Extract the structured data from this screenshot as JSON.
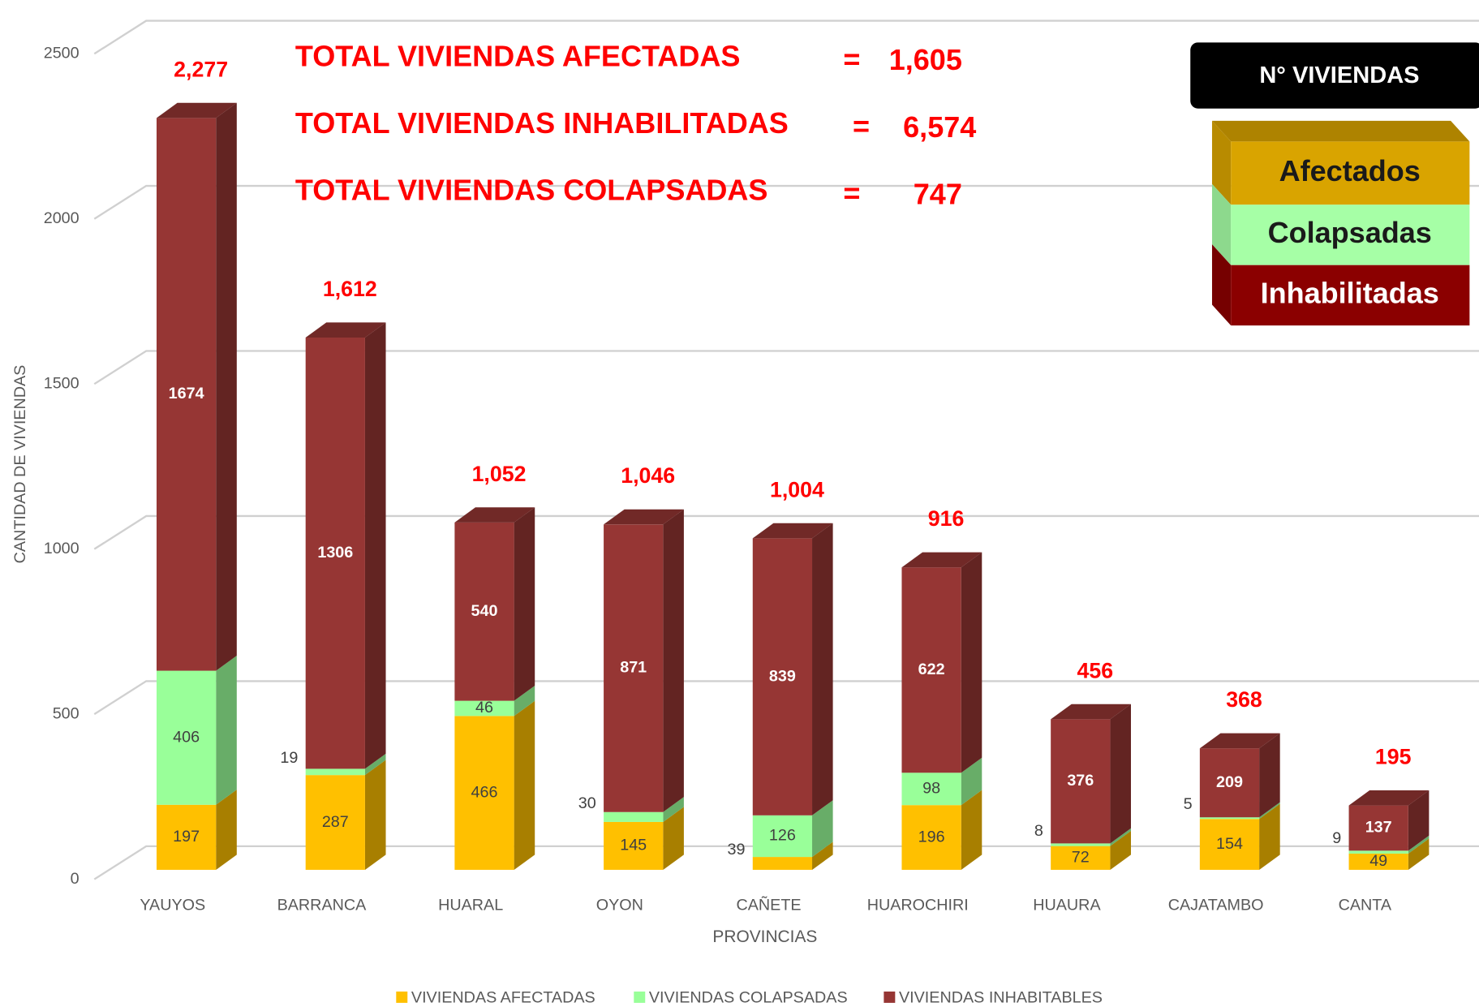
{
  "chart_data": {
    "type": "bar3d_stacked",
    "x_label": "PROVINCIAS",
    "y_label": "CANTIDAD DE VIVIENDAS",
    "categories": [
      "YAUYOS",
      "BARRANCA",
      "HUARAL",
      "OYON",
      "CAÑETE",
      "HUAROCHIRI",
      "HUAURA",
      "CAJATAMBO",
      "CANTA"
    ],
    "series": [
      {
        "name": "VIVIENDAS AFECTADAS",
        "color": "#FFC000",
        "values": [
          197,
          287,
          466,
          145,
          39,
          196,
          72,
          154,
          49
        ]
      },
      {
        "name": "VIVIENDAS COLAPSADAS",
        "color": "#99FF99",
        "values": [
          406,
          19,
          46,
          30,
          126,
          98,
          8,
          5,
          9
        ]
      },
      {
        "name": "VIVIENDAS INHABITABLES",
        "color": "#963634",
        "values": [
          1674,
          1306,
          540,
          871,
          839,
          622,
          376,
          209,
          137
        ]
      }
    ],
    "totals": {
      "values": [
        2277,
        1612,
        1052,
        1046,
        1004,
        916,
        456,
        368,
        195
      ],
      "value_labels": [
        "2,277",
        "1,612",
        "1,052",
        "1,046",
        "1,004",
        "916",
        "456",
        "368",
        "195"
      ]
    },
    "ylim": [
      0,
      2500
    ],
    "yticks": [
      0,
      500,
      1000,
      1500,
      2000,
      2500
    ],
    "grid": true,
    "legend": "bottom",
    "annotations": [
      {
        "label": "TOTAL VIVIENDAS AFECTADAS",
        "sign": "=",
        "value": "1,605"
      },
      {
        "label": "TOTAL VIVIENDAS INHABILITADAS",
        "sign": "=",
        "value": "6,574"
      },
      {
        "label": "TOTAL VIVIENDAS COLAPSADAS",
        "sign": "=",
        "value": "747"
      }
    ],
    "box_legend": {
      "title": "N° VIVIENDAS",
      "items": [
        {
          "label": "Afectados",
          "color": "#D9A400"
        },
        {
          "label": "Colapsadas",
          "color": "#A6FFA6"
        },
        {
          "label": "Inhabilitadas",
          "color": "#8B0000"
        }
      ]
    }
  }
}
